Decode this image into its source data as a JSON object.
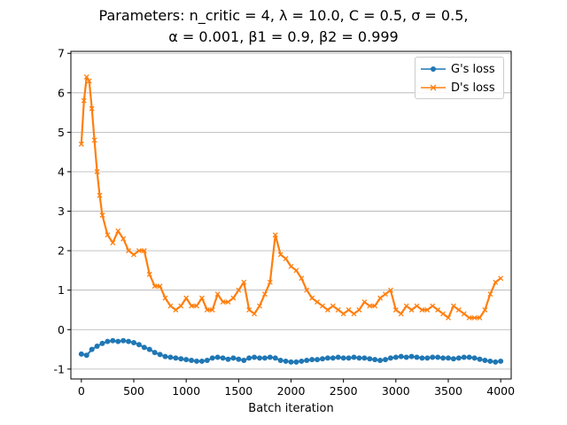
{
  "title_line1": "Parameters: n_critic = 4, λ = 10.0, C = 0.5, σ = 0.5,",
  "title_line2": "α = 0.001, β1 = 0.9, β2 = 0.999",
  "colors": {
    "g": "#1f77b4",
    "d": "#ff7f0e",
    "grid": "#b0b0b0"
  },
  "chart_data": {
    "type": "line",
    "title": "Parameters: n_critic = 4, λ = 10.0, C = 0.5, σ = 0.5, α = 0.001, β1 = 0.9, β2 = 0.999",
    "xlabel": "Batch iteration",
    "ylabel": "",
    "xlim": [
      -100,
      4100
    ],
    "ylim": [
      -1.25,
      7.05
    ],
    "xticks": [
      0,
      500,
      1000,
      1500,
      2000,
      2500,
      3000,
      3500,
      4000
    ],
    "yticks": [
      -1,
      0,
      1,
      2,
      3,
      4,
      5,
      6,
      7
    ],
    "grid": "horizontal",
    "legend_position": "top-right",
    "series": [
      {
        "name": "G's loss",
        "marker": "circle",
        "x": [
          0,
          50,
          100,
          150,
          200,
          250,
          300,
          350,
          400,
          450,
          500,
          550,
          600,
          650,
          700,
          750,
          800,
          850,
          900,
          950,
          1000,
          1050,
          1100,
          1150,
          1200,
          1250,
          1300,
          1350,
          1400,
          1450,
          1500,
          1550,
          1600,
          1650,
          1700,
          1750,
          1800,
          1850,
          1900,
          1950,
          2000,
          2050,
          2100,
          2150,
          2200,
          2250,
          2300,
          2350,
          2400,
          2450,
          2500,
          2550,
          2600,
          2650,
          2700,
          2750,
          2800,
          2850,
          2900,
          2950,
          3000,
          3050,
          3100,
          3150,
          3200,
          3250,
          3300,
          3350,
          3400,
          3450,
          3500,
          3550,
          3600,
          3650,
          3700,
          3750,
          3800,
          3850,
          3900,
          3950,
          4000
        ],
        "y": [
          -0.62,
          -0.65,
          -0.5,
          -0.42,
          -0.35,
          -0.3,
          -0.28,
          -0.3,
          -0.28,
          -0.3,
          -0.33,
          -0.38,
          -0.45,
          -0.5,
          -0.58,
          -0.63,
          -0.68,
          -0.7,
          -0.72,
          -0.74,
          -0.76,
          -0.78,
          -0.8,
          -0.8,
          -0.78,
          -0.72,
          -0.7,
          -0.72,
          -0.75,
          -0.72,
          -0.75,
          -0.78,
          -0.72,
          -0.7,
          -0.72,
          -0.72,
          -0.7,
          -0.72,
          -0.78,
          -0.8,
          -0.82,
          -0.82,
          -0.8,
          -0.78,
          -0.76,
          -0.76,
          -0.74,
          -0.72,
          -0.72,
          -0.7,
          -0.72,
          -0.72,
          -0.7,
          -0.72,
          -0.72,
          -0.74,
          -0.76,
          -0.78,
          -0.76,
          -0.72,
          -0.7,
          -0.68,
          -0.7,
          -0.68,
          -0.7,
          -0.72,
          -0.72,
          -0.7,
          -0.7,
          -0.72,
          -0.72,
          -0.74,
          -0.72,
          -0.7,
          -0.7,
          -0.72,
          -0.75,
          -0.78,
          -0.8,
          -0.82,
          -0.8
        ]
      },
      {
        "name": "D's loss",
        "marker": "x",
        "x": [
          0,
          25,
          50,
          75,
          100,
          125,
          150,
          175,
          200,
          250,
          300,
          350,
          400,
          450,
          500,
          550,
          600,
          650,
          700,
          750,
          800,
          850,
          900,
          950,
          1000,
          1050,
          1100,
          1150,
          1200,
          1250,
          1300,
          1350,
          1400,
          1450,
          1500,
          1550,
          1600,
          1650,
          1700,
          1750,
          1800,
          1850,
          1900,
          1950,
          2000,
          2050,
          2100,
          2150,
          2200,
          2250,
          2300,
          2350,
          2400,
          2450,
          2500,
          2550,
          2600,
          2650,
          2700,
          2750,
          2800,
          2850,
          2900,
          2950,
          3000,
          3050,
          3100,
          3150,
          3200,
          3250,
          3300,
          3350,
          3400,
          3450,
          3500,
          3550,
          3600,
          3650,
          3700,
          3750,
          3800,
          3850,
          3900,
          3950,
          4000
        ],
        "y": [
          4.7,
          5.8,
          6.4,
          6.3,
          5.6,
          4.8,
          4.0,
          3.4,
          2.9,
          2.4,
          2.2,
          2.5,
          2.3,
          2.0,
          1.9,
          2.0,
          2.0,
          1.4,
          1.1,
          1.1,
          0.8,
          0.6,
          0.5,
          0.6,
          0.8,
          0.6,
          0.6,
          0.8,
          0.5,
          0.5,
          0.9,
          0.7,
          0.7,
          0.8,
          1.0,
          1.2,
          0.5,
          0.4,
          0.6,
          0.9,
          1.2,
          2.4,
          1.9,
          1.8,
          1.6,
          1.5,
          1.3,
          1.0,
          0.8,
          0.7,
          0.6,
          0.5,
          0.6,
          0.5,
          0.4,
          0.5,
          0.4,
          0.5,
          0.7,
          0.6,
          0.6,
          0.8,
          0.9,
          1.0,
          0.5,
          0.4,
          0.6,
          0.5,
          0.6,
          0.5,
          0.5,
          0.6,
          0.5,
          0.4,
          0.3,
          0.6,
          0.5,
          0.4,
          0.3,
          0.3,
          0.3,
          0.5,
          0.9,
          1.2,
          1.3
        ]
      }
    ]
  }
}
